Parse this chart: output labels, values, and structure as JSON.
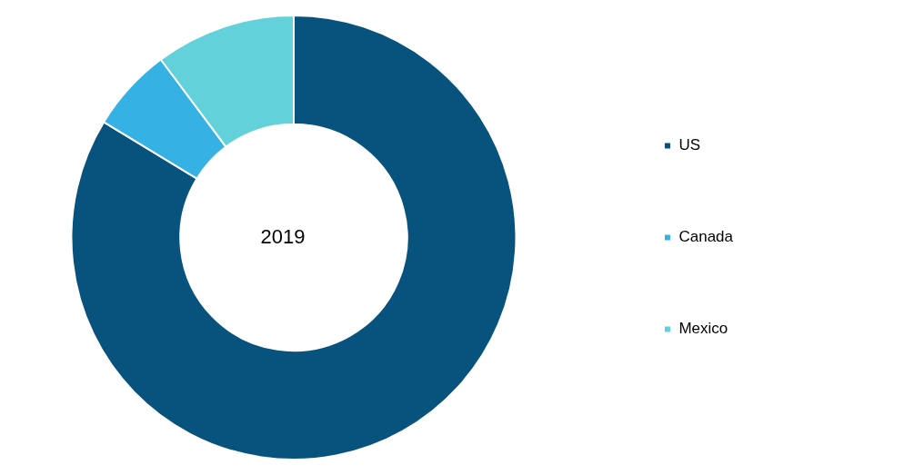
{
  "chart_data": {
    "type": "donut",
    "title": "2019",
    "categories": [
      "US",
      "Canada",
      "Mexico"
    ],
    "values": [
      83.7,
      6.1,
      10.2
    ],
    "colors": [
      "#08527e",
      "#35b1e3",
      "#63d1d9"
    ],
    "legend": "right"
  }
}
